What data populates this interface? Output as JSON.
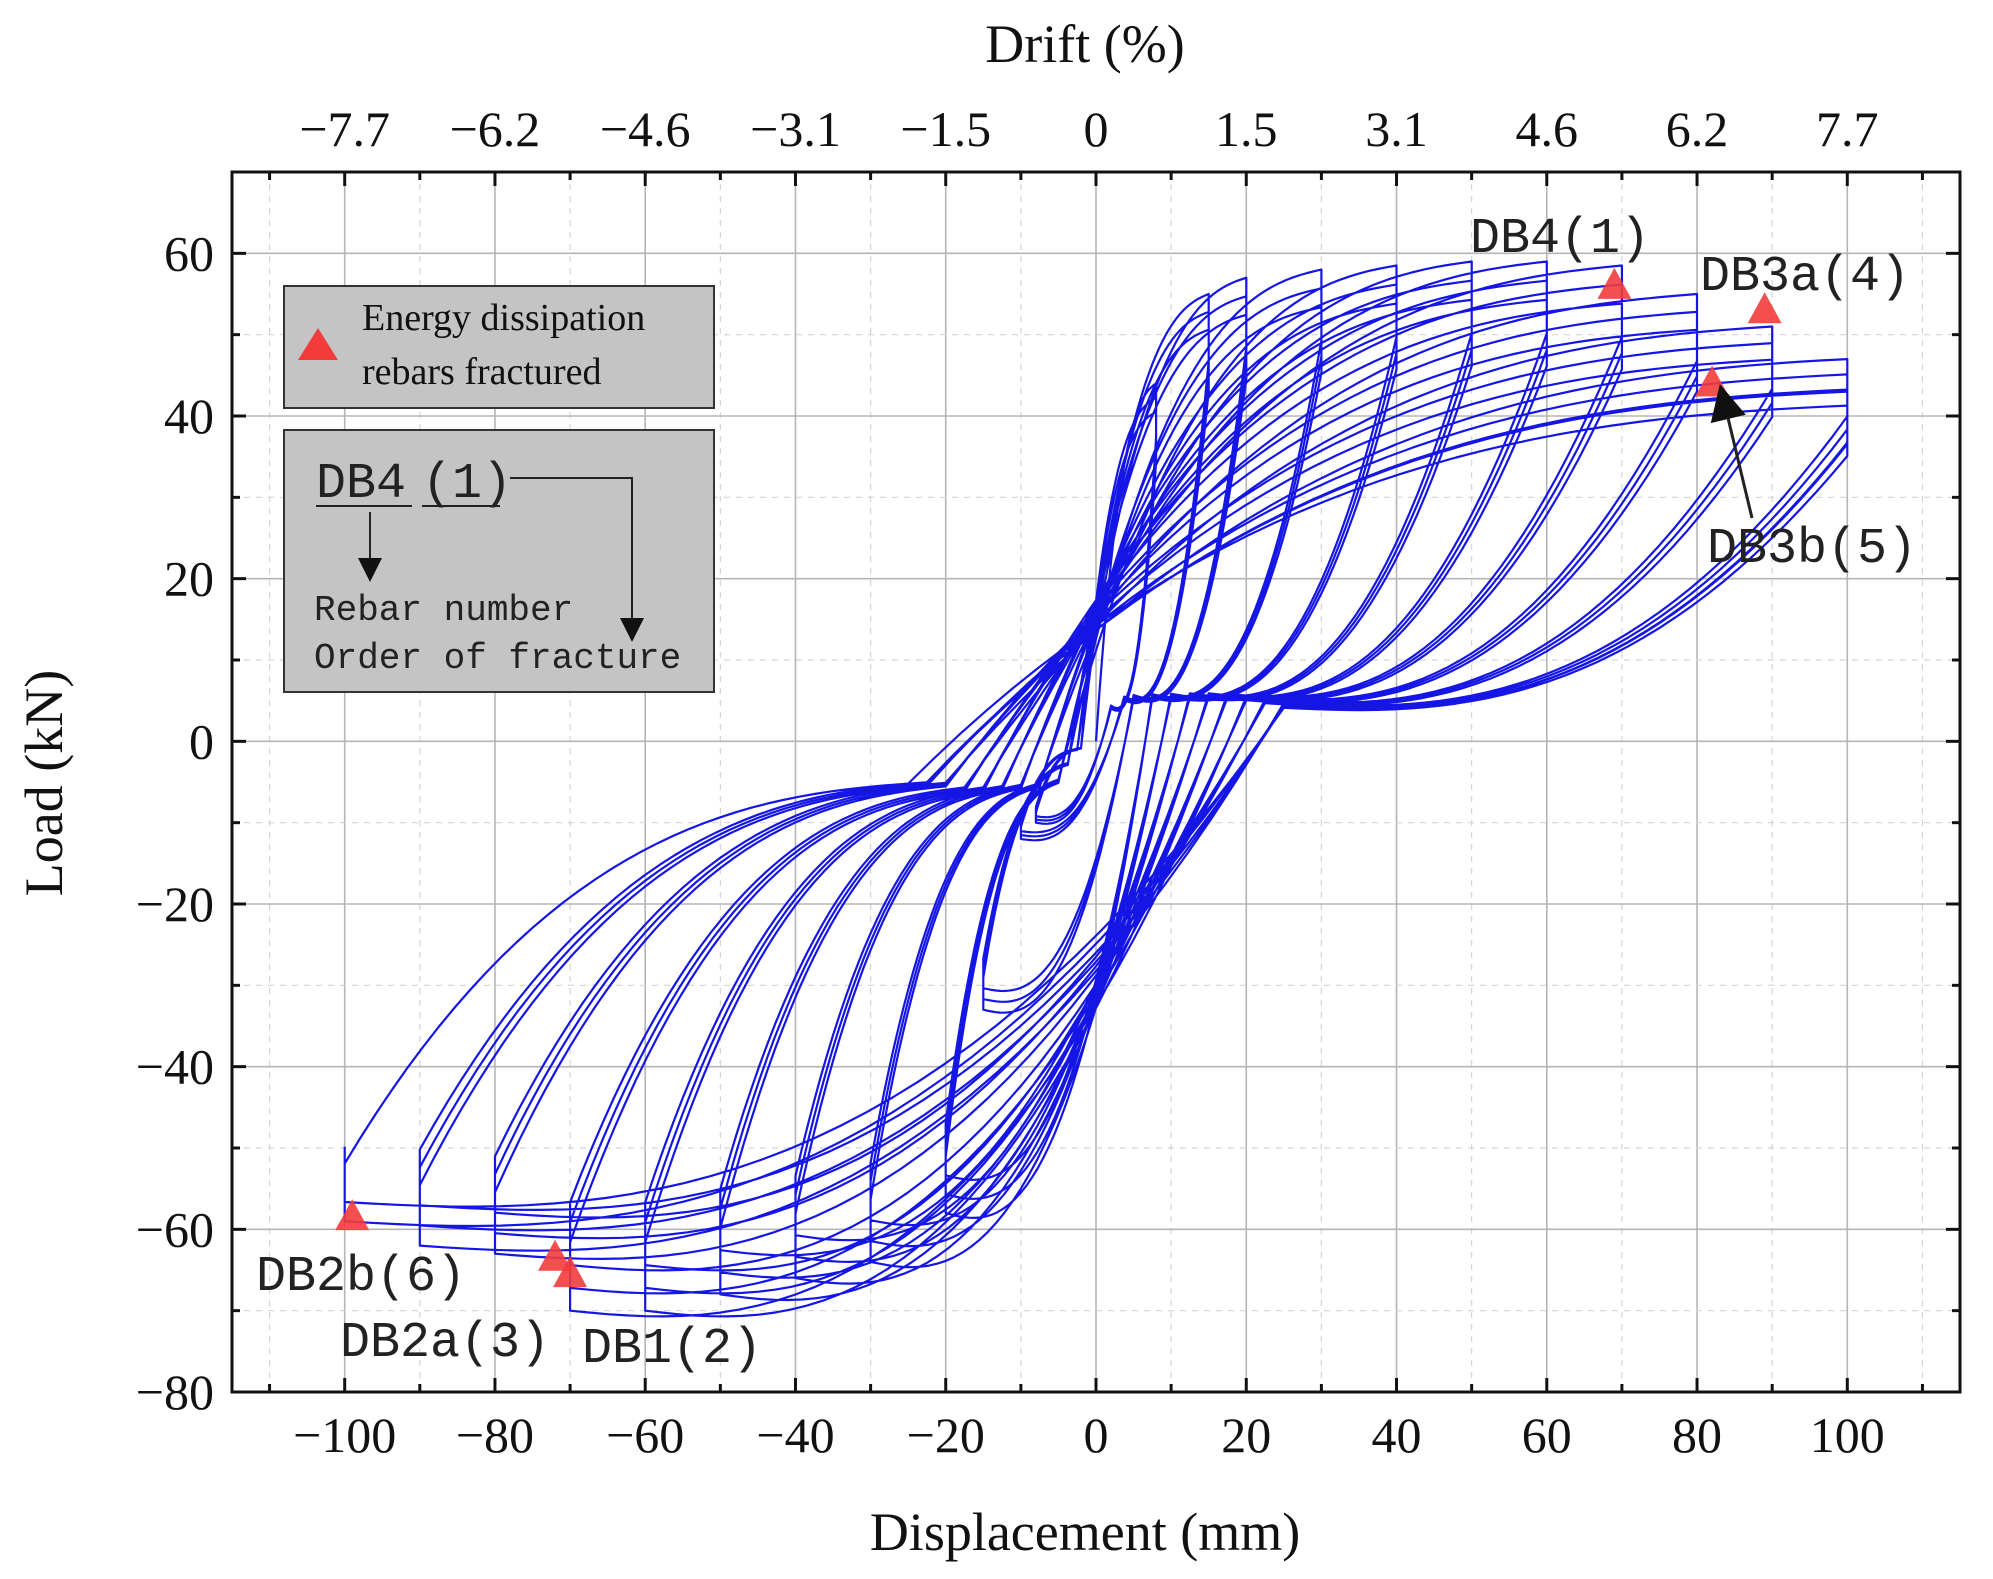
{
  "chart_data": {
    "type": "line",
    "title": "",
    "xlabel": "Displacement (mm)",
    "ylabel": "Load (kN)",
    "x2label": "Drift (%)",
    "xlim": [
      -115,
      115
    ],
    "ylim": [
      -80,
      70
    ],
    "x_ticks": [
      -100,
      -80,
      -60,
      -40,
      -20,
      0,
      20,
      40,
      60,
      80,
      100
    ],
    "y_ticks": [
      -80,
      -60,
      -40,
      -20,
      0,
      20,
      40,
      60
    ],
    "x2_ticks": [
      {
        "x": -100,
        "label": "−7.7"
      },
      {
        "x": -80,
        "label": "−6.2"
      },
      {
        "x": -60,
        "label": "−4.6"
      },
      {
        "x": -40,
        "label": "−3.1"
      },
      {
        "x": -20,
        "label": "−1.5"
      },
      {
        "x": 0,
        "label": "0"
      },
      {
        "x": 20,
        "label": "1.5"
      },
      {
        "x": 40,
        "label": "3.1"
      },
      {
        "x": 60,
        "label": "4.6"
      },
      {
        "x": 80,
        "label": "6.2"
      },
      {
        "x": 100,
        "label": "7.7"
      }
    ],
    "grid": true,
    "series_color": "#1515e6",
    "marker_color": "#f23c3c",
    "cycle_peaks": [
      {
        "dpos": 8,
        "ppos": 44,
        "dneg": -8,
        "pneg": -10,
        "reps": 3
      },
      {
        "dpos": 15,
        "ppos": 55,
        "dneg": -10,
        "pneg": -12,
        "reps": 3
      },
      {
        "dpos": 20,
        "ppos": 57,
        "dneg": -15,
        "pneg": -33,
        "reps": 3
      },
      {
        "dpos": 30,
        "ppos": 58,
        "dneg": -20,
        "pneg": -58,
        "reps": 3
      },
      {
        "dpos": 40,
        "ppos": 58.5,
        "dneg": -30,
        "pneg": -64,
        "reps": 3
      },
      {
        "dpos": 50,
        "ppos": 59,
        "dneg": -40,
        "pneg": -66,
        "reps": 3
      },
      {
        "dpos": 60,
        "ppos": 59,
        "dneg": -50,
        "pneg": -68,
        "reps": 3
      },
      {
        "dpos": 70,
        "ppos": 58.5,
        "dneg": -60,
        "pneg": -70,
        "reps": 3
      },
      {
        "dpos": 80,
        "ppos": 55,
        "dneg": -70,
        "pneg": -70,
        "reps": 3
      },
      {
        "dpos": 90,
        "ppos": 51,
        "dneg": -80,
        "pneg": -63,
        "reps": 3
      },
      {
        "dpos": 100,
        "ppos": 47,
        "dneg": -90,
        "pneg": -62,
        "reps": 3
      },
      {
        "dpos": 100,
        "ppos": 43,
        "dneg": -100,
        "pneg": -59,
        "reps": 2
      }
    ],
    "fracture_points": [
      {
        "id": "DB4",
        "order": 1,
        "x": 69,
        "y": 56,
        "label": "DB4(1)"
      },
      {
        "id": "DB1",
        "order": 2,
        "x": -70,
        "y": -65.5,
        "label": "DB1(2)"
      },
      {
        "id": "DB2a",
        "order": 3,
        "x": -72,
        "y": -63.5,
        "label": "DB2a(3)"
      },
      {
        "id": "DB3a",
        "order": 4,
        "x": 89,
        "y": 53,
        "label": "DB3a(4)"
      },
      {
        "id": "DB3b",
        "order": 5,
        "x": 82,
        "y": 44,
        "label": "DB3b(5)"
      },
      {
        "id": "DB2b",
        "order": 6,
        "x": -99,
        "y": -58.5,
        "label": "DB2b(6)"
      }
    ]
  },
  "legend": {
    "marker_text_line1": "Energy dissipation",
    "marker_text_line2": "rebars fractured",
    "key_rebar": "DB4",
    "key_order": "(1)",
    "key_rebar_desc": "Rebar number",
    "key_order_desc": "Order of fracture"
  }
}
